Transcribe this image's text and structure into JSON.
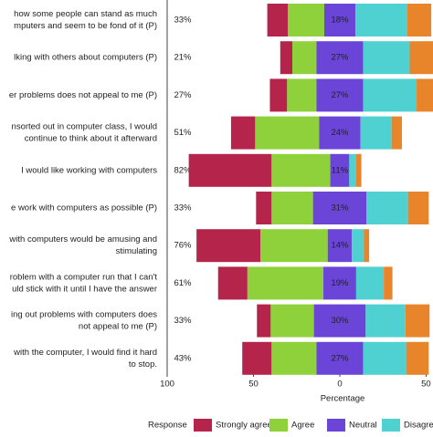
{
  "chart_data": {
    "type": "diverging-bar",
    "categories": [
      [
        "how some people can stand as much",
        "mputers and seem to be fond of it (P)"
      ],
      [
        "lking with others about computers (P)"
      ],
      [
        "er problems does not appeal to me (P)"
      ],
      [
        "nsorted out in computer class, I would",
        "continue to think about it afterward"
      ],
      [
        "I would like working with computers"
      ],
      [
        "e work with computers as possible (P)"
      ],
      [
        "with computers would be amusing and",
        "stimulating"
      ],
      [
        "roblem with a computer run that I can't",
        "uld stick with it until I have the answer"
      ],
      [
        "ing out problems with computers does",
        "not appeal to me (P)"
      ],
      [
        "with the computer, I would find it hard",
        "to stop."
      ]
    ],
    "total_labels": [
      "33%",
      "21%",
      "27%",
      "51%",
      "82%",
      "33%",
      "76%",
      "61%",
      "33%",
      "43%"
    ],
    "series": [
      {
        "name": "Strongly agree",
        "color": "#b5244a",
        "values": [
          12,
          7,
          10,
          14,
          48,
          9,
          37,
          17,
          8,
          17
        ]
      },
      {
        "name": "Agree",
        "color": "#8fd13b",
        "values": [
          21,
          14,
          17,
          37,
          34,
          24,
          39,
          44,
          25,
          26
        ]
      },
      {
        "name": "Neutral",
        "color": "#6a45d8",
        "values": [
          18,
          27,
          27,
          24,
          11,
          31,
          14,
          19,
          30,
          27
        ],
        "value_labels": [
          "18%",
          "27%",
          "27%",
          "24%",
          "11%",
          "31%",
          "14%",
          "19%",
          "30%",
          "27%"
        ]
      },
      {
        "name": "Disagree",
        "color": "#4fd0d1",
        "values": [
          30,
          27,
          31,
          18,
          4,
          24,
          7,
          16,
          23,
          25
        ]
      },
      {
        "color": "#e8852a",
        "values": [
          14,
          15,
          10,
          6,
          3,
          12,
          3,
          5,
          14,
          13
        ]
      }
    ],
    "xlim": [
      -100,
      54
    ],
    "xticks": [
      {
        "value": -100,
        "label": "100"
      },
      {
        "value": -50,
        "label": "50"
      },
      0,
      50
    ],
    "xlabel": "Percentage",
    "legend_title": "Response"
  }
}
